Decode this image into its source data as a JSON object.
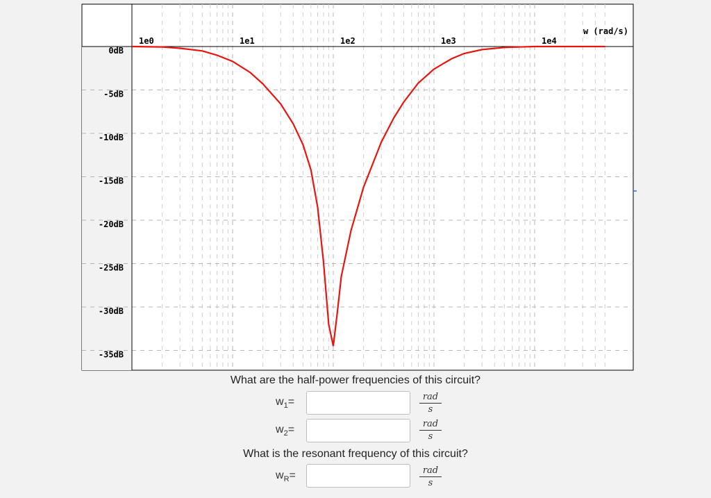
{
  "chart_data": {
    "type": "line",
    "x_scale": "log",
    "xlim": [
      1,
      50000
    ],
    "ylim": [
      -35,
      0
    ],
    "x_tick_labels": [
      "1e0",
      "1e1",
      "1e2",
      "1e3",
      "1e4"
    ],
    "x_ticks": [
      1,
      10,
      100,
      1000,
      10000
    ],
    "y_tick_labels": [
      "0dB",
      "-5dB",
      "-10dB",
      "-15dB",
      "-20dB",
      "-25dB",
      "-30dB",
      "-35dB"
    ],
    "y_ticks": [
      0,
      -5,
      -10,
      -15,
      -20,
      -25,
      -30,
      -35
    ],
    "xlabel": "w (rad/s)",
    "grid": true,
    "line_color": "#e8140e",
    "series": [
      {
        "x": [
          1,
          2,
          3,
          5,
          7,
          10,
          15,
          20,
          30,
          40,
          50,
          60,
          70,
          80,
          90,
          100,
          110,
          120,
          150,
          200,
          300,
          400,
          500,
          700,
          1000,
          1500,
          2000,
          3000,
          5000,
          10000,
          20000,
          50000
        ],
        "y": [
          0,
          -0.05,
          -0.2,
          -0.5,
          -1.0,
          -1.7,
          -3.0,
          -4.3,
          -6.6,
          -8.9,
          -11.3,
          -14.2,
          -18.5,
          -24.8,
          -32.0,
          -34.5,
          -30.5,
          -26.5,
          -21.2,
          -16.2,
          -11.0,
          -8.2,
          -6.4,
          -4.2,
          -2.6,
          -1.4,
          -0.8,
          -0.35,
          -0.1,
          0,
          0,
          0
        ]
      }
    ]
  },
  "questions": {
    "q1": "What are the half-power frequencies of this circuit?",
    "q2": "What is the resonant frequency of this circuit?"
  },
  "fields": {
    "w1": {
      "label": "w",
      "sub": "1",
      "suffix": "=",
      "value": ""
    },
    "w2": {
      "label": "w",
      "sub": "2",
      "suffix": "=",
      "value": ""
    },
    "wR": {
      "label": "w",
      "sub": "R",
      "suffix": "=",
      "value": ""
    }
  },
  "unit": {
    "num": "rad",
    "den": "s"
  }
}
